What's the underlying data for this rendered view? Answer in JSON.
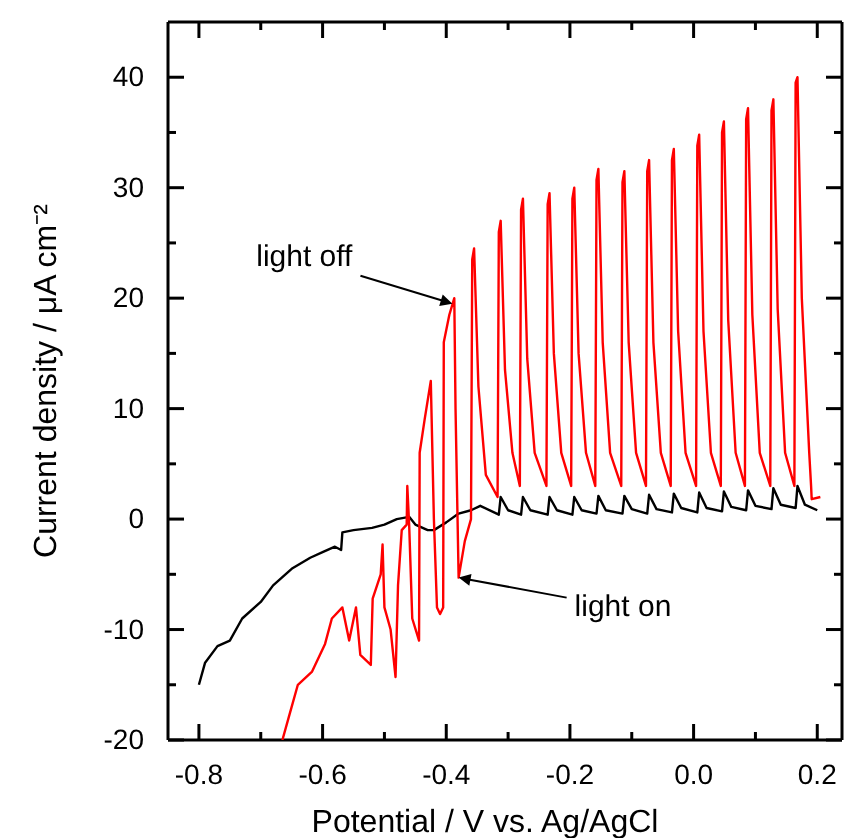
{
  "chart_data": {
    "type": "line",
    "xlabel": "Potential / V vs. Ag/AgCl",
    "ylabel": "Current density / μA cm⁻²",
    "xlim": [
      -0.85,
      0.24
    ],
    "ylim": [
      -20,
      45
    ],
    "xticks": [
      {
        "value": -0.8,
        "label": "-0.8"
      },
      {
        "value": -0.7,
        "label": null
      },
      {
        "value": -0.6,
        "label": "-0.6"
      },
      {
        "value": -0.5,
        "label": null
      },
      {
        "value": -0.4,
        "label": "-0.4"
      },
      {
        "value": -0.3,
        "label": null
      },
      {
        "value": -0.2,
        "label": "-0.2"
      },
      {
        "value": -0.1,
        "label": null
      },
      {
        "value": 0,
        "label": "0.0"
      },
      {
        "value": 0.1,
        "label": null
      },
      {
        "value": 0.2,
        "label": "0.2"
      }
    ],
    "yticks": [
      -20,
      {
        "value": -15,
        "label": null
      },
      -10,
      {
        "value": -5,
        "label": null
      },
      0,
      {
        "value": 5,
        "label": null
      },
      10,
      {
        "value": 15,
        "label": null
      },
      20,
      {
        "value": 25,
        "label": null
      },
      30,
      {
        "value": 35,
        "label": null
      },
      40
    ],
    "grid": false,
    "marker": "none",
    "line_style": "solid",
    "annotations": [
      {
        "text": "light off",
        "x": -0.39,
        "y": 19.5
      },
      {
        "text": "light on",
        "x": -0.38,
        "y": -5.3
      }
    ],
    "series": [
      {
        "color": "#000000",
        "x": [
          -0.8,
          -0.79,
          -0.77,
          -0.75,
          -0.73,
          -0.7,
          -0.68,
          -0.65,
          -0.62,
          -0.6,
          -0.58,
          -0.57,
          -0.568,
          -0.55,
          -0.52,
          -0.5,
          -0.48,
          -0.46,
          -0.45,
          -0.43,
          -0.42,
          -0.4,
          -0.38,
          -0.36,
          -0.345,
          -0.315,
          -0.312,
          -0.3,
          -0.279,
          -0.276,
          -0.264,
          -0.236,
          -0.233,
          -0.221,
          -0.196,
          -0.193,
          -0.181,
          -0.157,
          -0.154,
          -0.142,
          -0.115,
          -0.112,
          -0.1,
          -0.075,
          -0.072,
          -0.06,
          -0.035,
          -0.032,
          -0.02,
          0.006,
          0.009,
          0.021,
          0.046,
          0.049,
          0.061,
          0.085,
          0.088,
          0.1,
          0.126,
          0.129,
          0.141,
          0.165,
          0.168,
          0.18,
          0.2
        ],
        "values": [
          -15,
          -13,
          -11.5,
          -11,
          -9,
          -7.5,
          -6,
          -4.5,
          -3.5,
          -3,
          -2.5,
          -2.8,
          -1.2,
          -1,
          -0.8,
          -0.5,
          0,
          0.2,
          -0.5,
          -1,
          -1,
          -0.3,
          0.5,
          0.8,
          1.2,
          0.4,
          2,
          0.8,
          0.4,
          2,
          0.8,
          0.4,
          2,
          0.8,
          0.4,
          2,
          0.8,
          0.5,
          2.1,
          0.8,
          0.5,
          2.1,
          0.9,
          0.5,
          2.2,
          0.9,
          0.6,
          2.3,
          1,
          0.6,
          2.4,
          1,
          0.7,
          2.5,
          1.1,
          0.8,
          2.6,
          1.2,
          0.9,
          2.8,
          1.3,
          1,
          3,
          1.3,
          0.8
        ]
      },
      {
        "color": "#ff0000",
        "x": [
          -0.665,
          -0.655,
          -0.64,
          -0.617,
          -0.596,
          -0.585,
          -0.568,
          -0.557,
          -0.546,
          -0.539,
          -0.522,
          -0.519,
          -0.506,
          -0.503,
          -0.5,
          -0.49,
          -0.482,
          -0.478,
          -0.472,
          -0.464,
          -0.463,
          -0.46,
          -0.455,
          -0.444,
          -0.443,
          -0.435,
          -0.425,
          -0.42,
          -0.415,
          -0.41,
          -0.405,
          -0.404,
          -0.395,
          -0.387,
          -0.385,
          -0.38,
          -0.37,
          -0.36,
          -0.358,
          -0.355,
          -0.348,
          -0.336,
          -0.317,
          -0.315,
          -0.312,
          -0.305,
          -0.293,
          -0.281,
          -0.279,
          -0.276,
          -0.269,
          -0.257,
          -0.238,
          -0.236,
          -0.233,
          -0.226,
          -0.214,
          -0.198,
          -0.196,
          -0.193,
          -0.186,
          -0.174,
          -0.159,
          -0.157,
          -0.154,
          -0.147,
          -0.135,
          -0.117,
          -0.115,
          -0.112,
          -0.105,
          -0.093,
          -0.077,
          -0.075,
          -0.072,
          -0.065,
          -0.053,
          -0.037,
          -0.035,
          -0.032,
          -0.025,
          -0.013,
          0.004,
          0.006,
          0.009,
          0.016,
          0.028,
          0.044,
          0.046,
          0.049,
          0.056,
          0.068,
          0.083,
          0.085,
          0.088,
          0.095,
          0.107,
          0.124,
          0.126,
          0.129,
          0.136,
          0.148,
          0.163,
          0.165,
          0.168,
          0.175,
          0.187,
          0.19,
          0.191,
          0.205
        ],
        "values": [
          -20,
          -18,
          -15,
          -13.8,
          -11.3,
          -9,
          -8,
          -11,
          -8,
          -12.3,
          -13.2,
          -7.2,
          -5,
          -2.3,
          -8,
          -10,
          -14.3,
          -6,
          -1,
          -0.5,
          3,
          -0.5,
          -9,
          -11,
          6,
          9,
          12.5,
          0,
          -8,
          -8.6,
          -8,
          16,
          18.5,
          20,
          10,
          -5.3,
          -2,
          0,
          23.5,
          24.5,
          12,
          4,
          2,
          26,
          27,
          13.5,
          6,
          3,
          28,
          29,
          14.5,
          6,
          3,
          28.5,
          29.5,
          15,
          6,
          3,
          29,
          30,
          15,
          6,
          3,
          30.7,
          31.7,
          16,
          6,
          3,
          30.5,
          31.5,
          16,
          6,
          3,
          31.5,
          32.5,
          16,
          6,
          3,
          32.5,
          33.5,
          17,
          6,
          3,
          33.8,
          34.8,
          17,
          6,
          3,
          35,
          36,
          18,
          6,
          3,
          36.2,
          37.2,
          18.5,
          6,
          3,
          37,
          38,
          19,
          6,
          3,
          39.5,
          40,
          20,
          6,
          3,
          1.8,
          2
        ]
      }
    ]
  }
}
